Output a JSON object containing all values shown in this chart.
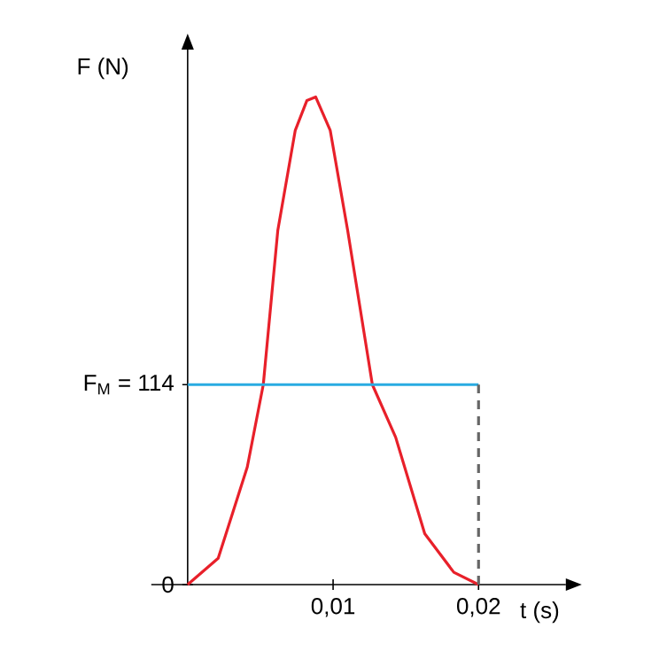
{
  "chart_data": {
    "type": "line",
    "xlabel": "t (s)",
    "ylabel": "F (N)",
    "marker": "none",
    "xlim": [
      -0.0025,
      0.026
    ],
    "ylim": [
      0,
      305
    ],
    "xticks": [
      {
        "value": 0.01,
        "label": "0,01"
      },
      {
        "value": 0.02,
        "label": "0,02"
      }
    ],
    "yticks": [
      {
        "value": 0,
        "label": "0"
      },
      {
        "value": 114,
        "label": "F$_{M}$ = 114"
      }
    ],
    "series": [
      {
        "color": "#e8202a",
        "x": [
          0,
          0.0021,
          0.0041,
          0.0052,
          0.0062,
          0.0074,
          0.0082,
          0.0088,
          0.0098,
          0.011,
          0.0127,
          0.0143,
          0.0163,
          0.0183,
          0.02
        ],
        "values": [
          0,
          15,
          67,
          114,
          202,
          259,
          276,
          278,
          259,
          202,
          114,
          84,
          29,
          7,
          0
        ]
      },
      {
        "color": "#29abe2",
        "x": [
          0,
          0.02
        ],
        "values": [
          114,
          114
        ]
      },
      {
        "color": "#666666",
        "line_style": "dashed",
        "x": [
          0.02,
          0.02
        ],
        "values": [
          0,
          114
        ]
      }
    ]
  }
}
